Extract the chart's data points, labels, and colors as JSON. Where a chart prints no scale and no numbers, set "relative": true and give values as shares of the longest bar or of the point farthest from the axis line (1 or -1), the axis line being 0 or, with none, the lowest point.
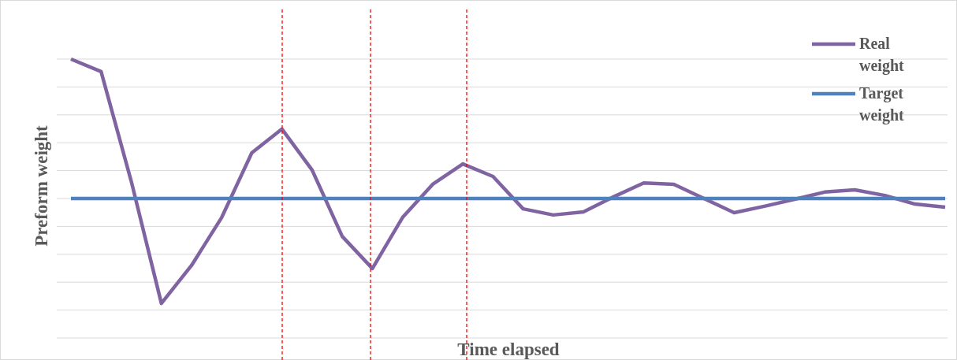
{
  "chart_data": {
    "type": "line",
    "relative": true,
    "xlabel": "Time elapsed",
    "ylabel": "Preform weight",
    "categories": [
      null,
      null,
      null,
      null,
      null,
      null,
      null,
      null,
      null,
      null,
      null,
      null,
      null,
      null,
      null,
      null,
      null,
      null,
      null,
      null,
      null,
      null,
      null,
      null,
      null,
      null,
      null,
      null,
      null,
      null
    ],
    "grid": true,
    "legend": "top right",
    "line_style": "solid",
    "marker": "none",
    "series": [
      {
        "name": "Real weight",
        "color": "#8064a2",
        "values": [
          1,
          0.955,
          0.562,
          0.124,
          0.26,
          0.432,
          0.664,
          0.749,
          0.602,
          0.364,
          0.249,
          0.432,
          0.551,
          0.624,
          0.579,
          0.463,
          0.441,
          0.452,
          0.506,
          0.556,
          0.551,
          0.5,
          0.449,
          0.472,
          0.497,
          0.523,
          0.531,
          0.511,
          0.48,
          0.469
        ]
      },
      {
        "name": "Target weight",
        "color": "#4f81bd",
        "values": [
          0.5,
          0.5,
          0.5,
          0.5,
          0.5,
          0.5,
          0.5,
          0.5,
          0.5,
          0.5,
          0.5,
          0.5,
          0.5,
          0.5,
          0.5,
          0.5,
          0.5,
          0.5,
          0.5,
          0.5,
          0.5,
          0.5,
          0.5,
          0.5,
          0.5,
          0.5,
          0.5,
          0.5,
          0.5,
          0.5
        ]
      }
    ]
  }
}
